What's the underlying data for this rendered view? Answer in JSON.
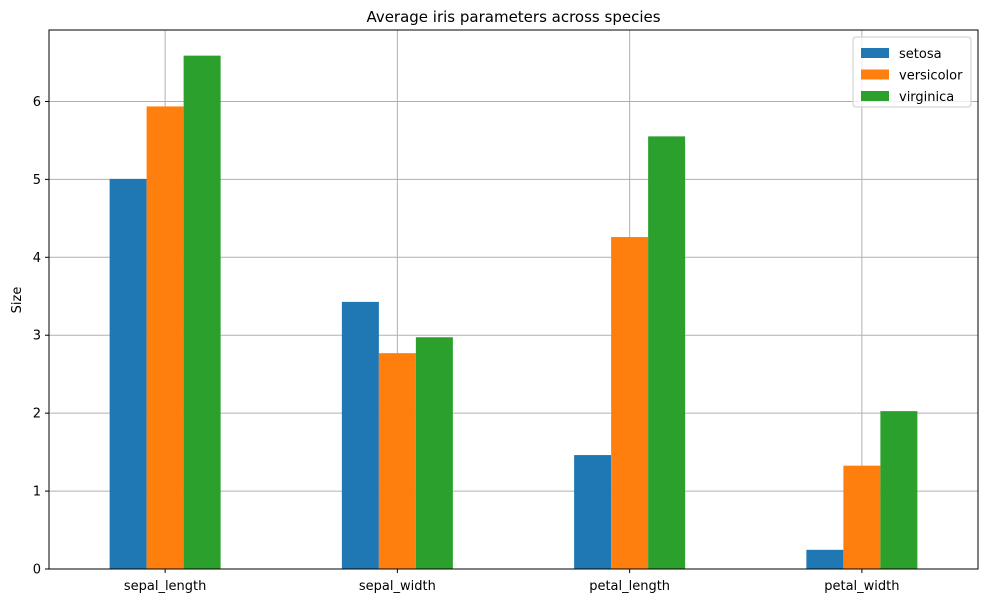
{
  "chart_data": {
    "type": "bar",
    "title": "Average iris parameters across species",
    "xlabel": "",
    "ylabel": "Size",
    "categories": [
      "sepal_length",
      "sepal_width",
      "petal_length",
      "petal_width"
    ],
    "series": [
      {
        "name": "setosa",
        "color": "#1f77b4",
        "values": [
          5.006,
          3.428,
          1.462,
          0.246
        ]
      },
      {
        "name": "versicolor",
        "color": "#ff7f0e",
        "values": [
          5.936,
          2.77,
          4.26,
          1.326
        ]
      },
      {
        "name": "virginica",
        "color": "#2ca02c",
        "values": [
          6.588,
          2.974,
          5.552,
          2.026
        ]
      }
    ],
    "yticks": [
      0,
      1,
      2,
      3,
      4,
      5,
      6
    ],
    "ylim": [
      0,
      6.917
    ],
    "grid": true,
    "legend_position": "top-right"
  }
}
